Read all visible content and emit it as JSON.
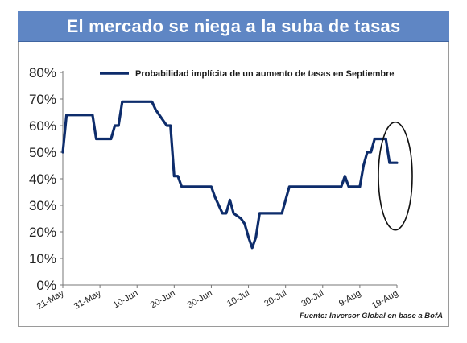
{
  "chart_data": {
    "type": "line",
    "title": "El mercado se niega a la suba de tasas",
    "xlabel": "",
    "ylabel": "",
    "ylim": [
      0,
      80
    ],
    "y_ticks": [
      "0%",
      "10%",
      "20%",
      "30%",
      "40%",
      "50%",
      "60%",
      "70%",
      "80%"
    ],
    "x_tick_labels": [
      "21-May",
      "31-May",
      "10-Jun",
      "20-Jun",
      "30-Jun",
      "10-Jul",
      "20-Jul",
      "30-Jul",
      "9-Aug",
      "19-Aug"
    ],
    "grid": false,
    "legend_position": "top",
    "source": "Fuente: Inversor Global en base a BofA",
    "series": [
      {
        "name": "Probabilidad implícita de un aumento de tasas en Septiembre",
        "color": "#0d2c6b",
        "x": [
          0,
          1,
          2,
          3,
          8,
          9,
          13,
          14,
          15,
          16,
          17,
          18,
          24,
          25,
          28,
          29,
          30,
          31,
          32,
          40,
          41,
          42,
          43,
          44,
          45,
          46,
          48,
          49,
          50,
          51,
          52,
          53,
          54,
          55,
          56,
          59,
          60,
          61,
          62,
          69,
          70,
          71,
          72,
          73,
          75,
          76,
          77,
          78,
          79,
          80,
          81,
          82,
          83,
          84,
          85,
          86,
          87,
          88,
          90
        ],
        "y": [
          50,
          64,
          64,
          64,
          64,
          55,
          55,
          60,
          60,
          69,
          69,
          69,
          69,
          66,
          60,
          60,
          41,
          41,
          37,
          37,
          33,
          30,
          27,
          27,
          32,
          27,
          25,
          23,
          18,
          14,
          18,
          27,
          27,
          27,
          27,
          27,
          32,
          37,
          37,
          37,
          37,
          37,
          37,
          37,
          37,
          41,
          37,
          37,
          37,
          37,
          45,
          50,
          50,
          55,
          55,
          55,
          55,
          46,
          46
        ]
      }
    ],
    "annotation": "ellipse"
  }
}
